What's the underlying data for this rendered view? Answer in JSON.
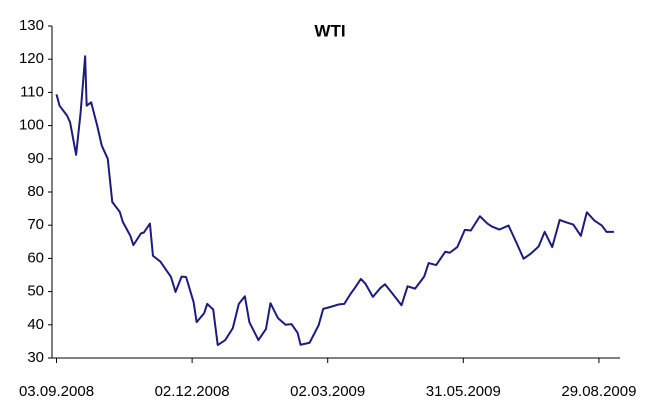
{
  "chart_data": {
    "type": "line",
    "title": "WTI",
    "x": [
      "03.09.2008",
      "05.09.2008",
      "10.09.2008",
      "12.09.2008",
      "16.09.2008",
      "19.09.2008",
      "22.09.2008",
      "23.09.2008",
      "26.09.2008",
      "30.09.2008",
      "03.10.2008",
      "07.10.2008",
      "10.10.2008",
      "15.10.2008",
      "17.10.2008",
      "22.10.2008",
      "24.10.2008",
      "29.10.2008",
      "31.10.2008",
      "04.11.2008",
      "06.11.2008",
      "11.11.2008",
      "14.11.2008",
      "18.11.2008",
      "21.11.2008",
      "25.11.2008",
      "28.11.2008",
      "03.12.2008",
      "05.12.2008",
      "10.12.2008",
      "12.12.2008",
      "16.12.2008",
      "19.12.2008",
      "24.12.2008",
      "29.12.2008",
      "02.01.2009",
      "06.01.2009",
      "09.01.2009",
      "15.01.2009",
      "20.01.2009",
      "23.01.2009",
      "28.01.2009",
      "02.02.2009",
      "06.02.2009",
      "10.02.2009",
      "12.02.2009",
      "18.02.2009",
      "24.02.2009",
      "27.02.2009",
      "04.03.2009",
      "09.03.2009",
      "13.03.2009",
      "17.03.2009",
      "20.03.2009",
      "24.03.2009",
      "27.03.2009",
      "01.04.2009",
      "06.04.2009",
      "09.04.2009",
      "14.04.2009",
      "20.04.2009",
      "24.04.2009",
      "29.04.2009",
      "05.05.2009",
      "08.05.2009",
      "13.05.2009",
      "19.05.2009",
      "22.05.2009",
      "27.05.2009",
      "01.06.2009",
      "05.06.2009",
      "11.06.2009",
      "16.06.2009",
      "19.06.2009",
      "24.06.2009",
      "30.06.2009",
      "06.07.2009",
      "10.07.2009",
      "15.07.2009",
      "20.07.2009",
      "24.07.2009",
      "29.07.2009",
      "03.08.2009",
      "07.08.2009",
      "12.08.2009",
      "17.08.2009",
      "21.08.2009",
      "26.08.2009",
      "31.08.2009",
      "03.09.2009",
      "08.09.2009"
    ],
    "series": [
      {
        "name": "WTI",
        "color": "#1c1c7c",
        "values": [
          109.4,
          106,
          103,
          101,
          91.2,
          104,
          120.9,
          106,
          107,
          100,
          94,
          90,
          77,
          74,
          71,
          66.8,
          64,
          67.5,
          67.8,
          70.5,
          60.8,
          59,
          57,
          54.4,
          49.9,
          54.5,
          54.4,
          46.8,
          40.8,
          43.5,
          46.3,
          44.6,
          33.9,
          35.4,
          39,
          46.3,
          48.6,
          40.8,
          35.4,
          38.7,
          46.5,
          42,
          40,
          40.2,
          37.6,
          34,
          34.6,
          39.9,
          44.8,
          45.4,
          46.1,
          46.3,
          49.2,
          51.1,
          53.8,
          52.4,
          48.4,
          51.1,
          52.2,
          49.4,
          45.9,
          51.6,
          50.9,
          54.5,
          58.6,
          58,
          62,
          61.7,
          63.4,
          68.6,
          68.4,
          72.7,
          70.5,
          69.6,
          68.7,
          69.9,
          64,
          59.9,
          61.5,
          63.6,
          68,
          63.4,
          71.6,
          70.9,
          70.2,
          66.8,
          73.9,
          71.4,
          69.9,
          68,
          68
        ]
      }
    ],
    "xlim": [
      "31.08.2008",
      "12.09.2009"
    ],
    "xticks": [
      "03.09.2008",
      "02.12.2008",
      "02.03.2009",
      "31.05.2009",
      "29.08.2009"
    ],
    "ylim": [
      30,
      130
    ],
    "yticks": [
      30,
      40,
      50,
      60,
      70,
      80,
      90,
      100,
      110,
      120,
      130
    ],
    "grid": false
  }
}
